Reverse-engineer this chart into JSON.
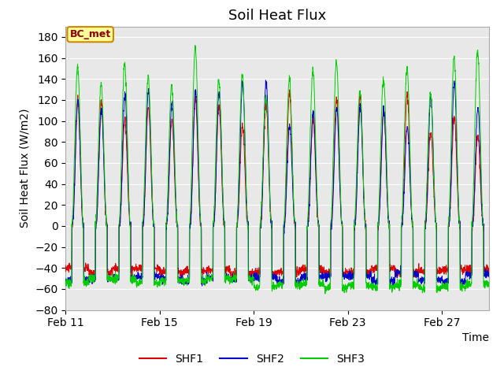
{
  "title": "Soil Heat Flux",
  "xlabel": "Time",
  "ylabel": "Soil Heat Flux (W/m2)",
  "ylim": [
    -80,
    190
  ],
  "yticks": [
    -80,
    -60,
    -40,
    -20,
    0,
    20,
    40,
    60,
    80,
    100,
    120,
    140,
    160,
    180
  ],
  "colors": {
    "SHF1": "#dd0000",
    "SHF2": "#0000cc",
    "SHF3": "#00cc00"
  },
  "legend_label": "BC_met",
  "legend_box_facecolor": "#ffff99",
  "legend_box_edgecolor": "#cc8800",
  "background_color": "#e8e8e8",
  "fig_background": "#ffffff",
  "xtick_labels": [
    "Feb 11",
    "Feb 15",
    "Feb 19",
    "Feb 23",
    "Feb 27"
  ],
  "xtick_positions": [
    0,
    4,
    8,
    12,
    16
  ],
  "total_days": 18,
  "points_per_day": 144,
  "title_fontsize": 13,
  "axis_label_fontsize": 10,
  "tick_fontsize": 10
}
